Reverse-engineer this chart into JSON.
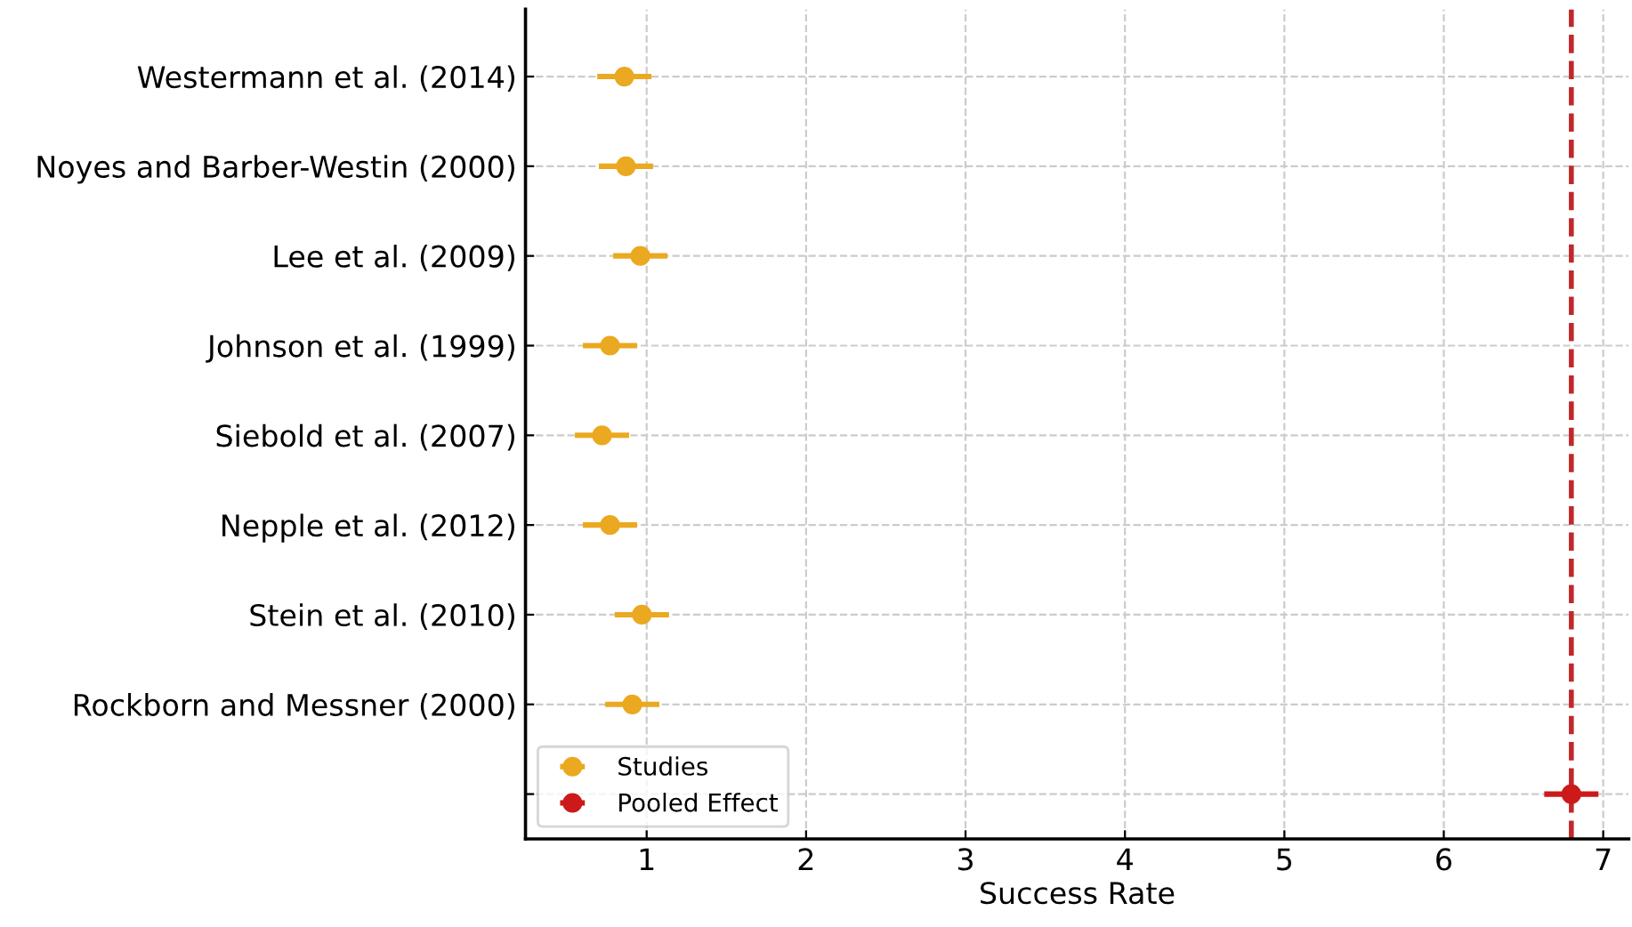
{
  "chart_data": {
    "type": "scatter",
    "orientation": "horizontal",
    "xlabel": "Success Rate",
    "categories": [
      "Westermann et al. (2014)",
      "Noyes and Barber-Westin (2000)",
      "Lee et al. (2009)",
      "Johnson et al. (1999)",
      "Siebold et al. (2007)",
      "Nepple et al. (2012)",
      "Stein et al. (2010)",
      "Rockborn and Messner (2000)",
      null
    ],
    "series": [
      {
        "name": "Studies",
        "color": "#eaa920",
        "values": [
          0.86,
          0.87,
          0.96,
          0.77,
          0.72,
          0.77,
          0.97,
          0.91,
          null
        ],
        "errors": [
          0.17,
          0.17,
          0.17,
          0.17,
          0.17,
          0.17,
          0.17,
          0.17,
          null
        ]
      },
      {
        "name": "Pooled Effect",
        "color": "#cc1a1a",
        "values": [
          null,
          null,
          null,
          null,
          null,
          null,
          null,
          null,
          6.8
        ],
        "errors": [
          null,
          null,
          null,
          null,
          null,
          null,
          null,
          null,
          0.17
        ]
      }
    ],
    "ref_lines": [
      {
        "axis": "x",
        "value": 6.8,
        "label": null,
        "color": "#c0282b",
        "line_style": "dashed"
      }
    ],
    "xlim": [
      0.24,
      7.16
    ],
    "xticks": [
      1,
      2,
      3,
      4,
      5,
      6,
      7
    ],
    "grid": true,
    "legend": "bottom left",
    "marker": "circle"
  }
}
